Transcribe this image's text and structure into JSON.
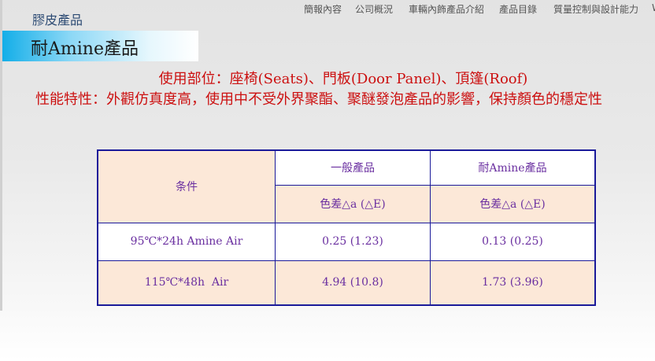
{
  "nav": {
    "items": [
      "簡報內容",
      "公司概況",
      "車輛內飾產品介紹",
      "產品目錄",
      "質量控制與設計能力",
      "W"
    ]
  },
  "category": "膠皮產品",
  "banner_title": "耐Amine產品",
  "usage": "使用部位：座椅(Seats)、門板(Door Panel)、頂篷(Roof)",
  "feature": "性能特性：外觀仿真度高，使用中不受外界聚酯、聚醚發泡產品的影響，保持顏色的穩定性",
  "table": {
    "condition_header": "条件",
    "columns": [
      "一般產品",
      "耐Amine產品"
    ],
    "subheaders": [
      "色差△a (△E)",
      "色差△a (△E)"
    ],
    "rows": [
      {
        "condition": "95℃*24h Amine Air",
        "values": [
          "0.25 (1.23)",
          "0.13 (0.25)"
        ]
      },
      {
        "condition": "115℃*48h  Air",
        "values": [
          "4.94 (10.8)",
          "1.73 (3.96)"
        ]
      }
    ]
  },
  "colors": {
    "text_red": "#cc1010",
    "table_text": "#6a2fa0",
    "table_border": "#1a1a9a",
    "peach": "#fce8d8",
    "banner_blue": "#13aee8"
  }
}
